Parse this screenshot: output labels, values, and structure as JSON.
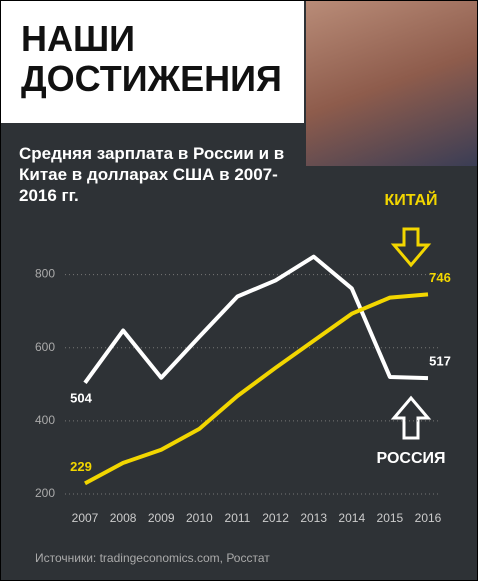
{
  "chart_data": {
    "type": "line",
    "title": "НАШИ ДОСТИЖЕНИЯ",
    "subtitle": "Средняя зарплата в России и в Китае в долларах США в 2007-2016 гг.",
    "source": "Источники: tradingeconomics.com, Росстат",
    "x": [
      2007,
      2008,
      2009,
      2010,
      2011,
      2012,
      2013,
      2014,
      2015,
      2016
    ],
    "xlim": [
      2007,
      2016
    ],
    "xticks": [
      2007,
      2008,
      2009,
      2010,
      2011,
      2012,
      2013,
      2014,
      2015,
      2016
    ],
    "ylim": [
      200,
      900
    ],
    "yticks": [
      200,
      400,
      600,
      800
    ],
    "grid": true,
    "series": [
      {
        "name": "РОССИЯ",
        "color": "#ffffff",
        "values": [
          504,
          647,
          518,
          630,
          740,
          784,
          849,
          762,
          520,
          517
        ]
      },
      {
        "name": "КИТАЙ",
        "color": "#f2d600",
        "values": [
          229,
          285,
          321,
          378,
          468,
          545,
          619,
          693,
          737,
          746
        ]
      }
    ]
  }
}
